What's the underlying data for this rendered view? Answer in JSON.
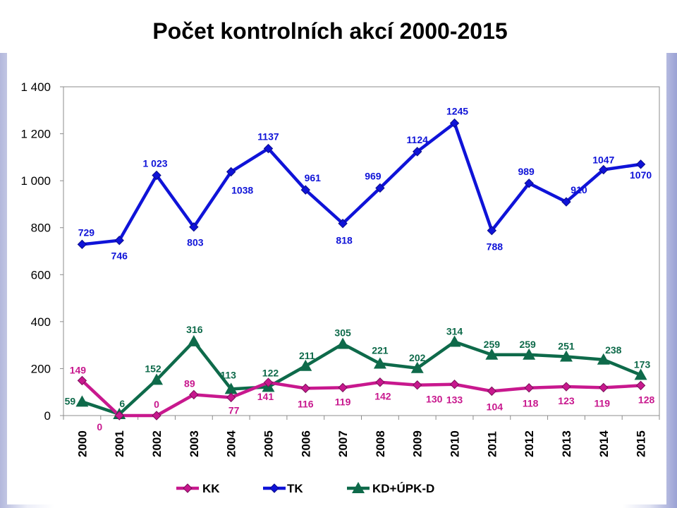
{
  "title": "Počet kontrolních akcí 2000-2015",
  "colors": {
    "KK": "#c8188e",
    "TK": "#0f13d8",
    "KD": "#0e6a4a"
  },
  "chart_data": {
    "type": "line",
    "title": "Počet kontrolních akcí 2000-2015",
    "categories": [
      "2000",
      "2001",
      "2002",
      "2003",
      "2004",
      "2005",
      "2006",
      "2007",
      "2008",
      "2009",
      "2010",
      "2011",
      "2012",
      "2013",
      "2014",
      "2015"
    ],
    "ylim": [
      0,
      1400
    ],
    "yticks": [
      0,
      200,
      400,
      600,
      800,
      1000,
      1200,
      1400
    ],
    "ytick_labels": [
      "0",
      "200",
      "400",
      "600",
      "800",
      "1 000",
      "1 200",
      "1 400"
    ],
    "grid": false,
    "legend": "bottom",
    "series": [
      {
        "name": "KK",
        "marker": "diamond",
        "values": [
          149,
          0,
          0,
          89,
          77,
          141,
          116,
          119,
          142,
          130,
          133,
          104,
          118,
          123,
          119,
          128
        ],
        "labels": [
          "149",
          "0",
          "0",
          "89",
          "77",
          "141",
          "116",
          "119",
          "142",
          "130",
          "133",
          "104",
          "118",
          "123",
          "119",
          "128"
        ]
      },
      {
        "name": "TK",
        "marker": "diamond",
        "values": [
          729,
          746,
          1023,
          803,
          1038,
          1137,
          961,
          818,
          969,
          1124,
          1245,
          788,
          989,
          910,
          1047,
          1070
        ],
        "labels": [
          "729",
          "746",
          "1 023",
          "803",
          "1038",
          "1137",
          "961",
          "818",
          "969",
          "1124",
          "1245",
          "788",
          "989",
          "910",
          "1047",
          "1070"
        ]
      },
      {
        "name": "KD+ÚPK-D",
        "marker": "triangle",
        "values": [
          59,
          6,
          152,
          316,
          113,
          122,
          211,
          305,
          221,
          202,
          314,
          259,
          259,
          251,
          238,
          173
        ],
        "labels": [
          "59",
          "6",
          "152",
          "316",
          "113",
          "122",
          "211",
          "305",
          "221",
          "202",
          "314",
          "259",
          "259",
          "251",
          "238",
          "173"
        ]
      }
    ]
  }
}
